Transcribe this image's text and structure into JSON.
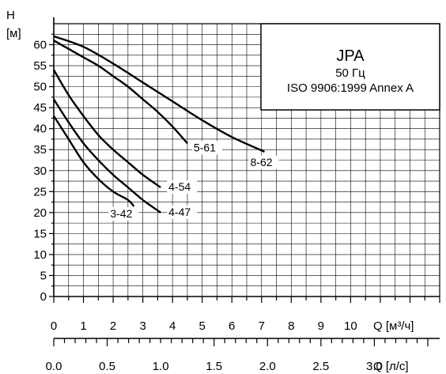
{
  "chart_data": {
    "type": "line",
    "title": "JPA",
    "subtitle_freq": "50 Гц",
    "subtitle_std": "ISO 9906:1999 Annex A",
    "y_label": "H",
    "y_unit": "[м]",
    "x_label": "Q [м³/ч]",
    "x2_label": "Q [л/с]",
    "x_ticks": [
      "0",
      "1",
      "2",
      "3",
      "4",
      "5",
      "6",
      "7",
      "8",
      "9",
      "10"
    ],
    "x2_ticks": [
      "0.0",
      "0.5",
      "1.0",
      "1.5",
      "2.0",
      "2.5",
      "3.0"
    ],
    "y_ticks": [
      "0",
      "5",
      "10",
      "15",
      "20",
      "25",
      "30",
      "35",
      "40",
      "45",
      "50",
      "55",
      "60"
    ],
    "xlim": [
      0,
      13
    ],
    "ylim": [
      0,
      65
    ],
    "grid": true,
    "series": [
      {
        "name": "3-42",
        "x": [
          0,
          0.5,
          1,
          1.5,
          2,
          2.5,
          2.7
        ],
        "y": [
          43,
          37.5,
          32,
          28,
          25,
          23,
          21.5
        ]
      },
      {
        "name": "4-47",
        "x": [
          0,
          0.5,
          1,
          1.5,
          2,
          2.5,
          3,
          3.5,
          3.6
        ],
        "y": [
          47,
          41.5,
          36.5,
          32.5,
          29,
          26,
          23,
          20.5,
          20
        ]
      },
      {
        "name": "4-54",
        "x": [
          0,
          0.5,
          1,
          1.5,
          2,
          2.5,
          3,
          3.6
        ],
        "y": [
          54,
          48,
          43,
          38.5,
          35,
          32,
          29,
          26
        ]
      },
      {
        "name": "5-61",
        "x": [
          0,
          0.5,
          1,
          1.5,
          2,
          2.5,
          3,
          3.5,
          4,
          4.5
        ],
        "y": [
          61,
          59,
          57,
          55,
          52.5,
          50,
          47,
          44,
          40.5,
          36.5
        ]
      },
      {
        "name": "8-62",
        "x": [
          0,
          1,
          2,
          3,
          4,
          5,
          6,
          7.1
        ],
        "y": [
          62,
          59.5,
          55.5,
          51,
          46.5,
          42,
          38,
          34.5
        ]
      }
    ]
  }
}
